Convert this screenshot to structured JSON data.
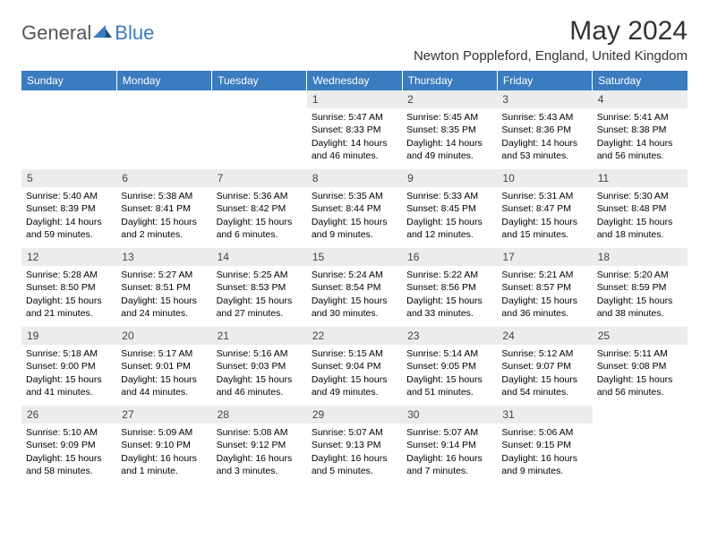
{
  "logo": {
    "general": "General",
    "blue": "Blue"
  },
  "title": "May 2024",
  "location": "Newton Poppleford, England, United Kingdom",
  "colors": {
    "header_bg": "#3b7bbf",
    "header_text": "#ffffff",
    "daynum_bg": "#ececec",
    "page_bg": "#ffffff"
  },
  "dayNames": [
    "Sunday",
    "Monday",
    "Tuesday",
    "Wednesday",
    "Thursday",
    "Friday",
    "Saturday"
  ],
  "weeks": [
    [
      {
        "num": "",
        "sr": "",
        "ss": "",
        "dl": ""
      },
      {
        "num": "",
        "sr": "",
        "ss": "",
        "dl": ""
      },
      {
        "num": "",
        "sr": "",
        "ss": "",
        "dl": ""
      },
      {
        "num": "1",
        "sr": "Sunrise: 5:47 AM",
        "ss": "Sunset: 8:33 PM",
        "dl": "Daylight: 14 hours and 46 minutes."
      },
      {
        "num": "2",
        "sr": "Sunrise: 5:45 AM",
        "ss": "Sunset: 8:35 PM",
        "dl": "Daylight: 14 hours and 49 minutes."
      },
      {
        "num": "3",
        "sr": "Sunrise: 5:43 AM",
        "ss": "Sunset: 8:36 PM",
        "dl": "Daylight: 14 hours and 53 minutes."
      },
      {
        "num": "4",
        "sr": "Sunrise: 5:41 AM",
        "ss": "Sunset: 8:38 PM",
        "dl": "Daylight: 14 hours and 56 minutes."
      }
    ],
    [
      {
        "num": "5",
        "sr": "Sunrise: 5:40 AM",
        "ss": "Sunset: 8:39 PM",
        "dl": "Daylight: 14 hours and 59 minutes."
      },
      {
        "num": "6",
        "sr": "Sunrise: 5:38 AM",
        "ss": "Sunset: 8:41 PM",
        "dl": "Daylight: 15 hours and 2 minutes."
      },
      {
        "num": "7",
        "sr": "Sunrise: 5:36 AM",
        "ss": "Sunset: 8:42 PM",
        "dl": "Daylight: 15 hours and 6 minutes."
      },
      {
        "num": "8",
        "sr": "Sunrise: 5:35 AM",
        "ss": "Sunset: 8:44 PM",
        "dl": "Daylight: 15 hours and 9 minutes."
      },
      {
        "num": "9",
        "sr": "Sunrise: 5:33 AM",
        "ss": "Sunset: 8:45 PM",
        "dl": "Daylight: 15 hours and 12 minutes."
      },
      {
        "num": "10",
        "sr": "Sunrise: 5:31 AM",
        "ss": "Sunset: 8:47 PM",
        "dl": "Daylight: 15 hours and 15 minutes."
      },
      {
        "num": "11",
        "sr": "Sunrise: 5:30 AM",
        "ss": "Sunset: 8:48 PM",
        "dl": "Daylight: 15 hours and 18 minutes."
      }
    ],
    [
      {
        "num": "12",
        "sr": "Sunrise: 5:28 AM",
        "ss": "Sunset: 8:50 PM",
        "dl": "Daylight: 15 hours and 21 minutes."
      },
      {
        "num": "13",
        "sr": "Sunrise: 5:27 AM",
        "ss": "Sunset: 8:51 PM",
        "dl": "Daylight: 15 hours and 24 minutes."
      },
      {
        "num": "14",
        "sr": "Sunrise: 5:25 AM",
        "ss": "Sunset: 8:53 PM",
        "dl": "Daylight: 15 hours and 27 minutes."
      },
      {
        "num": "15",
        "sr": "Sunrise: 5:24 AM",
        "ss": "Sunset: 8:54 PM",
        "dl": "Daylight: 15 hours and 30 minutes."
      },
      {
        "num": "16",
        "sr": "Sunrise: 5:22 AM",
        "ss": "Sunset: 8:56 PM",
        "dl": "Daylight: 15 hours and 33 minutes."
      },
      {
        "num": "17",
        "sr": "Sunrise: 5:21 AM",
        "ss": "Sunset: 8:57 PM",
        "dl": "Daylight: 15 hours and 36 minutes."
      },
      {
        "num": "18",
        "sr": "Sunrise: 5:20 AM",
        "ss": "Sunset: 8:59 PM",
        "dl": "Daylight: 15 hours and 38 minutes."
      }
    ],
    [
      {
        "num": "19",
        "sr": "Sunrise: 5:18 AM",
        "ss": "Sunset: 9:00 PM",
        "dl": "Daylight: 15 hours and 41 minutes."
      },
      {
        "num": "20",
        "sr": "Sunrise: 5:17 AM",
        "ss": "Sunset: 9:01 PM",
        "dl": "Daylight: 15 hours and 44 minutes."
      },
      {
        "num": "21",
        "sr": "Sunrise: 5:16 AM",
        "ss": "Sunset: 9:03 PM",
        "dl": "Daylight: 15 hours and 46 minutes."
      },
      {
        "num": "22",
        "sr": "Sunrise: 5:15 AM",
        "ss": "Sunset: 9:04 PM",
        "dl": "Daylight: 15 hours and 49 minutes."
      },
      {
        "num": "23",
        "sr": "Sunrise: 5:14 AM",
        "ss": "Sunset: 9:05 PM",
        "dl": "Daylight: 15 hours and 51 minutes."
      },
      {
        "num": "24",
        "sr": "Sunrise: 5:12 AM",
        "ss": "Sunset: 9:07 PM",
        "dl": "Daylight: 15 hours and 54 minutes."
      },
      {
        "num": "25",
        "sr": "Sunrise: 5:11 AM",
        "ss": "Sunset: 9:08 PM",
        "dl": "Daylight: 15 hours and 56 minutes."
      }
    ],
    [
      {
        "num": "26",
        "sr": "Sunrise: 5:10 AM",
        "ss": "Sunset: 9:09 PM",
        "dl": "Daylight: 15 hours and 58 minutes."
      },
      {
        "num": "27",
        "sr": "Sunrise: 5:09 AM",
        "ss": "Sunset: 9:10 PM",
        "dl": "Daylight: 16 hours and 1 minute."
      },
      {
        "num": "28",
        "sr": "Sunrise: 5:08 AM",
        "ss": "Sunset: 9:12 PM",
        "dl": "Daylight: 16 hours and 3 minutes."
      },
      {
        "num": "29",
        "sr": "Sunrise: 5:07 AM",
        "ss": "Sunset: 9:13 PM",
        "dl": "Daylight: 16 hours and 5 minutes."
      },
      {
        "num": "30",
        "sr": "Sunrise: 5:07 AM",
        "ss": "Sunset: 9:14 PM",
        "dl": "Daylight: 16 hours and 7 minutes."
      },
      {
        "num": "31",
        "sr": "Sunrise: 5:06 AM",
        "ss": "Sunset: 9:15 PM",
        "dl": "Daylight: 16 hours and 9 minutes."
      },
      {
        "num": "",
        "sr": "",
        "ss": "",
        "dl": ""
      }
    ]
  ]
}
